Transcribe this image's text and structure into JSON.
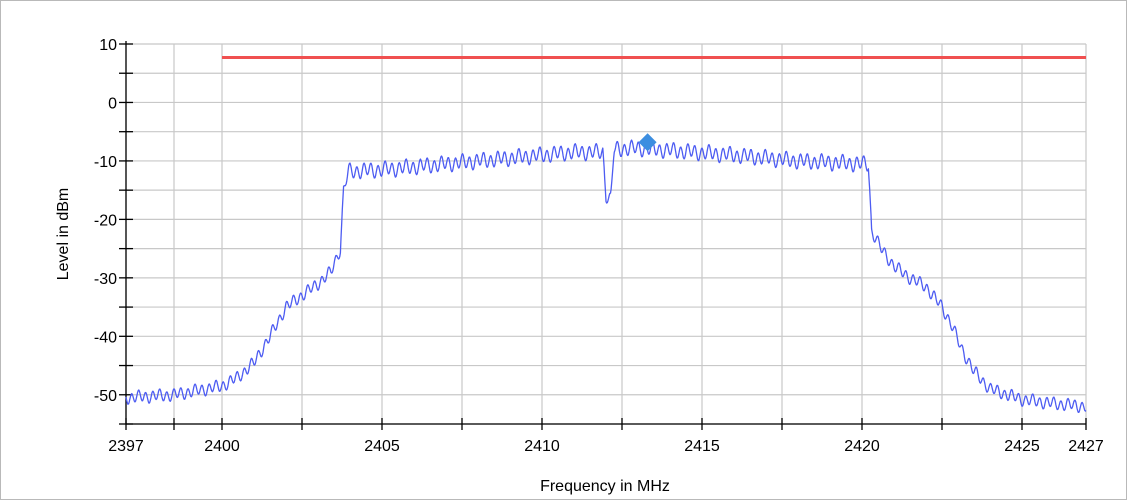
{
  "chart_data": {
    "type": "line",
    "title": "",
    "xlabel": "Frequency in MHz",
    "ylabel": "Level in dBm",
    "xlim": [
      2397,
      2427
    ],
    "ylim": [
      -55,
      10
    ],
    "grid": true,
    "x_gridlines": [
      2397,
      2398.5,
      2400,
      2402.5,
      2405,
      2407.5,
      2410,
      2412.5,
      2415,
      2417.5,
      2420,
      2422.5,
      2425,
      2427
    ],
    "y_gridlines": [
      -55,
      -50,
      -45,
      -40,
      -35,
      -30,
      -25,
      -20,
      -15,
      -10,
      -5,
      0,
      5,
      10
    ],
    "x_tick_labels": [
      {
        "value": 2397,
        "label": "2397"
      },
      {
        "value": 2400,
        "label": "2400"
      },
      {
        "value": 2405,
        "label": "2405"
      },
      {
        "value": 2410,
        "label": "2410"
      },
      {
        "value": 2415,
        "label": "2415"
      },
      {
        "value": 2420,
        "label": "2420"
      },
      {
        "value": 2425,
        "label": "2425"
      },
      {
        "value": 2427,
        "label": "2427"
      }
    ],
    "y_tick_labels": [
      {
        "value": 10,
        "label": "10"
      },
      {
        "value": 0,
        "label": "0"
      },
      {
        "value": -10,
        "label": "-10"
      },
      {
        "value": -20,
        "label": "-20"
      },
      {
        "value": -30,
        "label": "-30"
      },
      {
        "value": -40,
        "label": "-40"
      },
      {
        "value": -50,
        "label": "-50"
      }
    ],
    "series": [
      {
        "color": "#4d5cf2",
        "envelope": [
          [
            2397,
            -50.5
          ],
          [
            2398.5,
            -50
          ],
          [
            2400,
            -48.5
          ],
          [
            2400.5,
            -47
          ],
          [
            2401,
            -44.5
          ],
          [
            2401.5,
            -40
          ],
          [
            2402,
            -35
          ],
          [
            2402.5,
            -33
          ],
          [
            2403,
            -31
          ],
          [
            2403.4,
            -29
          ],
          [
            2403.7,
            -25
          ],
          [
            2403.8,
            -15
          ],
          [
            2403.95,
            -11.8
          ],
          [
            2405,
            -11.5
          ],
          [
            2407,
            -10.5
          ],
          [
            2409,
            -9.5
          ],
          [
            2411,
            -8.5
          ],
          [
            2411.9,
            -8.5
          ],
          [
            2412,
            -16
          ],
          [
            2412.15,
            -16.5
          ],
          [
            2412.25,
            -8
          ],
          [
            2413,
            -7.8
          ],
          [
            2414,
            -8.2
          ],
          [
            2416,
            -9
          ],
          [
            2418,
            -10
          ],
          [
            2420,
            -10.5
          ],
          [
            2420.2,
            -10.5
          ],
          [
            2420.3,
            -22
          ],
          [
            2420.6,
            -25
          ],
          [
            2421,
            -28
          ],
          [
            2421.5,
            -30
          ],
          [
            2422,
            -31.5
          ],
          [
            2422.5,
            -35
          ],
          [
            2422.8,
            -38
          ],
          [
            2423.1,
            -42
          ],
          [
            2423.5,
            -46
          ],
          [
            2424,
            -49
          ],
          [
            2425,
            -50.8
          ],
          [
            2426,
            -51.5
          ],
          [
            2427,
            -52
          ]
        ],
        "ripple_amplitude_db": 1.1,
        "ripple_period_mhz": 0.22
      }
    ],
    "limit_line": {
      "color": "#f05050",
      "x_start": 2400,
      "x_end": 2427,
      "y": 7.7
    },
    "marker": {
      "color": "#3c8ee0",
      "shape": "diamond",
      "x": 2413.3,
      "y": -6.8
    }
  }
}
